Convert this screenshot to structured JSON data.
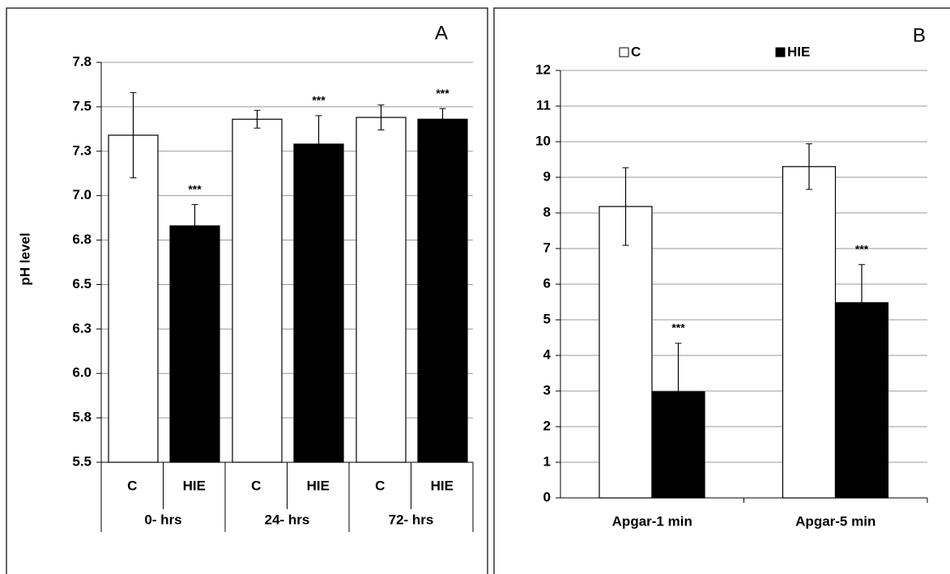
{
  "chart_data": [
    {
      "type": "bar",
      "panel_label": "A",
      "y_label": "pH level",
      "categories": [
        "0- hrs",
        "24- hrs",
        "72- hrs"
      ],
      "series": [
        {
          "name": "C",
          "color": "#ffffff",
          "values": [
            7.34,
            7.43,
            7.44
          ],
          "errors": [
            0.24,
            0.05,
            0.07
          ]
        },
        {
          "name": "HIE",
          "color": "#000000",
          "values": [
            6.83,
            7.29,
            7.43
          ],
          "errors": [
            0.12,
            0.16,
            0.06
          ],
          "significance": [
            "***",
            "***",
            "***"
          ]
        }
      ],
      "ylim": [
        5.5,
        7.75
      ],
      "yticks": [
        5.5,
        {
          "value": 5.75,
          "label": "5.8"
        },
        {
          "value": 6,
          "label": "6.0"
        },
        {
          "value": 6.25,
          "label": "6.3"
        },
        6.5,
        {
          "value": 6.75,
          "label": "6.8"
        },
        {
          "value": 7,
          "label": "7.0"
        },
        {
          "value": 7.25,
          "label": "7.3"
        },
        7.5,
        {
          "value": 7.75,
          "label": "7.8"
        }
      ],
      "grid": true
    },
    {
      "type": "bar",
      "panel_label": "B",
      "categories": [
        "Apgar-1 min",
        "Apgar-5 min"
      ],
      "series": [
        {
          "name": "C",
          "color": "#ffffff",
          "values": [
            8.18,
            9.3
          ],
          "errors": [
            1.09,
            0.64
          ]
        },
        {
          "name": "HIE",
          "color": "#000000",
          "values": [
            2.98,
            5.48
          ],
          "errors": [
            1.36,
            1.07
          ],
          "significance": [
            "***",
            "***"
          ]
        }
      ],
      "ylim": [
        0,
        12
      ],
      "yticks": [
        0,
        1,
        2,
        3,
        4,
        5,
        6,
        7,
        8,
        9,
        10,
        11,
        12
      ],
      "grid": true,
      "legend": "top"
    }
  ]
}
